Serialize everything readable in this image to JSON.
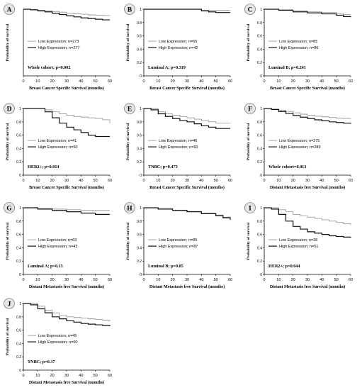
{
  "figure": {
    "panels": [
      {
        "letter": "A",
        "legend": [
          "Low Expression; n=273",
          "High Expression; n=277"
        ],
        "annotation": "Whole cohort; p=0.002",
        "ylabel": "Probability of survival",
        "xlabel": "Breast Cancer Specific Survival (months)"
      },
      {
        "letter": "B",
        "legend": [
          "Low Expression; n=65",
          "High Expression; n=42"
        ],
        "annotation": "Luminal A; p=0.319",
        "ylabel": "Probability of survival",
        "xlabel": "Breast Cancer Specific Survival (months)"
      },
      {
        "letter": "C",
        "legend": [
          "Low Expression; n=85",
          "High Expression; n=86"
        ],
        "annotation": "Luminal B; p=0.241",
        "ylabel": "Probability of survival",
        "xlabel": "Breast Cancer Specific Survival (months)"
      },
      {
        "letter": "D",
        "legend": [
          "Low Expression; n=41",
          "High Expression; n=50"
        ],
        "annotation": "HER2+; p=0.014",
        "ylabel": "Probability of survival",
        "xlabel": "Breast Cancer Specific Survival (months)"
      },
      {
        "letter": "E",
        "legend": [
          "Low Expression; n=46",
          "High Expression; n=60"
        ],
        "annotation": "TNBC; p=0.473",
        "ylabel": "Probability of survival",
        "xlabel": "Breast Cancer Specific Survival (months)"
      },
      {
        "letter": "F",
        "legend": [
          "Low Expression; n=275",
          "High Expression; n=283"
        ],
        "annotation": "Whole cohort=0.013",
        "ylabel": "Probability of survival",
        "xlabel": "Distant Metastasis free Survival (months)"
      },
      {
        "letter": "G",
        "legend": [
          "Low Expression; n=69",
          "High Expression; n=43"
        ],
        "annotation": "Luminal A; p=0.15",
        "ylabel": "Probability of survival",
        "xlabel": "Distant Metastasis free Survival (months)"
      },
      {
        "letter": "H",
        "legend": [
          "Low Expression; n=85",
          "High Expression; n=87"
        ],
        "annotation": "Luminal B; p=0.85",
        "ylabel": "Probability of survival",
        "xlabel": "Distant Metastasis free Survival (months)"
      },
      {
        "letter": "I",
        "legend": [
          "Low Expression; n=38",
          "High Expression; n=51"
        ],
        "annotation": "HER2+; p=0.044",
        "ylabel": "Probability of survival",
        "xlabel": "Distant Metastasis free Survival (months)"
      },
      {
        "letter": "J",
        "legend": [
          "Low Expression; n=45",
          "High Expression; n=60"
        ],
        "annotation": "TNBC; p=0.37",
        "ylabel": "Probability of survival",
        "xlabel": "Distant Metastasis free Survival (months)"
      }
    ]
  },
  "colors": {
    "low": "#9a9a9a",
    "high": "#111111",
    "badge": "#e4e4e4"
  },
  "chart_data": [
    {
      "type": "line",
      "panel": "A",
      "ylim": [
        0,
        1
      ],
      "xlim": [
        0,
        60
      ],
      "x_ticks": [
        0,
        10,
        20,
        30,
        40,
        50,
        60
      ],
      "y_ticks": [],
      "series": [
        {
          "name": "Low Expression; n=273",
          "x": [
            0,
            5,
            10,
            15,
            20,
            25,
            30,
            35,
            40,
            45,
            50,
            55,
            60
          ],
          "y": [
            1.0,
            0.995,
            0.985,
            0.975,
            0.965,
            0.955,
            0.94,
            0.93,
            0.925,
            0.915,
            0.91,
            0.905,
            0.9
          ]
        },
        {
          "name": "High Expression; n=277",
          "x": [
            0,
            5,
            10,
            15,
            20,
            25,
            30,
            35,
            40,
            45,
            50,
            55,
            60
          ],
          "y": [
            1.0,
            0.99,
            0.975,
            0.96,
            0.94,
            0.92,
            0.9,
            0.885,
            0.87,
            0.86,
            0.85,
            0.84,
            0.84
          ]
        }
      ]
    },
    {
      "type": "line",
      "panel": "B",
      "ylim": [
        0,
        1
      ],
      "xlim": [
        0,
        60
      ],
      "x_ticks": [
        0,
        10,
        20,
        30,
        40,
        50,
        60
      ],
      "y_ticks": [
        0,
        0.2,
        0.4,
        0.6,
        0.8,
        1.0
      ],
      "series": [
        {
          "name": "Low Expression; n=65",
          "x": [
            0,
            10,
            20,
            30,
            40,
            45,
            50,
            60
          ],
          "y": [
            1.0,
            1.0,
            1.0,
            1.0,
            0.985,
            0.985,
            0.985,
            0.985
          ]
        },
        {
          "name": "High Expression; n=42",
          "x": [
            0,
            10,
            20,
            30,
            40,
            45,
            50,
            60
          ],
          "y": [
            1.0,
            1.0,
            1.0,
            1.0,
            0.975,
            0.96,
            0.95,
            0.95
          ]
        }
      ]
    },
    {
      "type": "line",
      "panel": "C",
      "ylim": [
        0,
        1
      ],
      "xlim": [
        0,
        60
      ],
      "x_ticks": [
        0,
        10,
        20,
        30,
        40,
        50,
        60
      ],
      "y_ticks": [
        0,
        0.2,
        0.4,
        0.6,
        0.8,
        1.0
      ],
      "series": [
        {
          "name": "Low Expression; n=85",
          "x": [
            0,
            10,
            20,
            30,
            40,
            50,
            55,
            60
          ],
          "y": [
            1.0,
            0.99,
            0.975,
            0.96,
            0.95,
            0.935,
            0.92,
            0.92
          ]
        },
        {
          "name": "High Expression; n=86",
          "x": [
            0,
            10,
            20,
            30,
            40,
            50,
            55,
            60
          ],
          "y": [
            1.0,
            0.985,
            0.96,
            0.945,
            0.93,
            0.91,
            0.89,
            0.88
          ]
        }
      ]
    },
    {
      "type": "line",
      "panel": "D",
      "ylim": [
        0,
        1
      ],
      "xlim": [
        0,
        60
      ],
      "x_ticks": [
        0,
        10,
        20,
        30,
        40,
        50,
        60
      ],
      "y_ticks": [
        0,
        0.2,
        0.4,
        0.6,
        0.8,
        1.0
      ],
      "series": [
        {
          "name": "Low Expression; n=41",
          "x": [
            0,
            10,
            15,
            20,
            25,
            30,
            35,
            40,
            45,
            50,
            55,
            60
          ],
          "y": [
            1.0,
            1.0,
            0.98,
            0.95,
            0.92,
            0.9,
            0.88,
            0.87,
            0.86,
            0.85,
            0.83,
            0.78
          ]
        },
        {
          "name": "High Expression; n=50",
          "x": [
            0,
            10,
            15,
            20,
            25,
            30,
            35,
            40,
            45,
            50,
            55,
            60
          ],
          "y": [
            1.0,
            1.0,
            0.95,
            0.86,
            0.78,
            0.72,
            0.68,
            0.64,
            0.6,
            0.58,
            0.58,
            0.58
          ]
        }
      ]
    },
    {
      "type": "line",
      "panel": "E",
      "ylim": [
        0,
        1
      ],
      "xlim": [
        0,
        60
      ],
      "x_ticks": [
        0,
        10,
        20,
        30,
        40,
        50,
        60
      ],
      "y_ticks": [
        0,
        0.2,
        0.4,
        0.6,
        0.8,
        1.0
      ],
      "series": [
        {
          "name": "Low Expression; n=46",
          "x": [
            0,
            5,
            10,
            15,
            20,
            25,
            30,
            35,
            40,
            45,
            50,
            55,
            60
          ],
          "y": [
            1.0,
            1.0,
            0.95,
            0.92,
            0.9,
            0.88,
            0.86,
            0.84,
            0.82,
            0.8,
            0.78,
            0.78,
            0.78
          ]
        },
        {
          "name": "High Expression; n=60",
          "x": [
            0,
            5,
            10,
            15,
            20,
            25,
            30,
            35,
            40,
            45,
            50,
            55,
            60
          ],
          "y": [
            1.0,
            0.98,
            0.92,
            0.88,
            0.85,
            0.82,
            0.8,
            0.77,
            0.74,
            0.72,
            0.7,
            0.7,
            0.7
          ]
        }
      ]
    },
    {
      "type": "line",
      "panel": "F",
      "ylim": [
        0,
        1
      ],
      "xlim": [
        0,
        60
      ],
      "x_ticks": [
        0,
        10,
        20,
        30,
        40,
        50,
        60
      ],
      "y_ticks": [
        0,
        0.2,
        0.4,
        0.6,
        0.8,
        1.0
      ],
      "series": [
        {
          "name": "Low Expression; n=275",
          "x": [
            0,
            5,
            10,
            15,
            20,
            25,
            30,
            35,
            40,
            45,
            50,
            55,
            60
          ],
          "y": [
            1.0,
            0.99,
            0.975,
            0.955,
            0.935,
            0.915,
            0.9,
            0.885,
            0.875,
            0.865,
            0.855,
            0.85,
            0.845
          ]
        },
        {
          "name": "High Expression; n=283",
          "x": [
            0,
            5,
            10,
            15,
            20,
            25,
            30,
            35,
            40,
            45,
            50,
            55,
            60
          ],
          "y": [
            1.0,
            0.985,
            0.955,
            0.925,
            0.895,
            0.87,
            0.85,
            0.83,
            0.815,
            0.8,
            0.79,
            0.78,
            0.77
          ]
        }
      ]
    },
    {
      "type": "line",
      "panel": "G",
      "ylim": [
        0,
        1
      ],
      "xlim": [
        0,
        60
      ],
      "x_ticks": [
        0,
        10,
        20,
        30,
        40,
        50,
        60
      ],
      "y_ticks": [
        0,
        0.2,
        0.4,
        0.6,
        0.8,
        1.0
      ],
      "series": [
        {
          "name": "Low Expression; n=69",
          "x": [
            0,
            10,
            20,
            30,
            40,
            50,
            60
          ],
          "y": [
            1.0,
            0.99,
            0.98,
            0.97,
            0.96,
            0.96,
            0.96
          ]
        },
        {
          "name": "High Expression; n=43",
          "x": [
            0,
            10,
            20,
            30,
            40,
            50,
            60
          ],
          "y": [
            1.0,
            0.98,
            0.96,
            0.94,
            0.92,
            0.9,
            0.9
          ]
        }
      ]
    },
    {
      "type": "line",
      "panel": "H",
      "ylim": [
        0,
        1
      ],
      "xlim": [
        0,
        60
      ],
      "x_ticks": [
        0,
        10,
        20,
        30,
        40,
        50,
        60
      ],
      "y_ticks": [
        0,
        0.2,
        0.4,
        0.6,
        0.8,
        1.0
      ],
      "series": [
        {
          "name": "Low Expression; n=85",
          "x": [
            0,
            10,
            20,
            30,
            40,
            50,
            55,
            60
          ],
          "y": [
            1.0,
            0.985,
            0.965,
            0.945,
            0.92,
            0.89,
            0.86,
            0.84
          ]
        },
        {
          "name": "High Expression; n=87",
          "x": [
            0,
            10,
            20,
            30,
            40,
            50,
            55,
            60
          ],
          "y": [
            1.0,
            0.98,
            0.96,
            0.94,
            0.91,
            0.88,
            0.85,
            0.82
          ]
        }
      ]
    },
    {
      "type": "line",
      "panel": "I",
      "ylim": [
        0,
        1
      ],
      "xlim": [
        0,
        60
      ],
      "x_ticks": [
        0,
        10,
        20,
        30,
        40,
        50,
        60
      ],
      "y_ticks": [
        0,
        0.2,
        0.4,
        0.6,
        0.8,
        1.0
      ],
      "series": [
        {
          "name": "Low Expression; n=38",
          "x": [
            0,
            5,
            10,
            15,
            20,
            25,
            30,
            35,
            40,
            45,
            50,
            55,
            60
          ],
          "y": [
            1.0,
            1.0,
            0.97,
            0.94,
            0.9,
            0.88,
            0.86,
            0.84,
            0.82,
            0.8,
            0.78,
            0.76,
            0.74
          ]
        },
        {
          "name": "High Expression; n=51",
          "x": [
            0,
            5,
            10,
            15,
            20,
            25,
            30,
            35,
            40,
            45,
            50,
            55,
            60
          ],
          "y": [
            1.0,
            0.98,
            0.9,
            0.8,
            0.72,
            0.68,
            0.64,
            0.62,
            0.6,
            0.58,
            0.57,
            0.56,
            0.55
          ]
        }
      ]
    },
    {
      "type": "line",
      "panel": "J",
      "ylim": [
        0,
        1
      ],
      "xlim": [
        0,
        60
      ],
      "x_ticks": [
        0,
        10,
        20,
        30,
        40,
        50,
        60
      ],
      "y_ticks": [
        0,
        0.2,
        0.4,
        0.6,
        0.8,
        1.0
      ],
      "series": [
        {
          "name": "Low Expression; n=45",
          "x": [
            0,
            5,
            10,
            15,
            20,
            25,
            30,
            35,
            40,
            45,
            50,
            55,
            60
          ],
          "y": [
            1.0,
            1.0,
            0.96,
            0.9,
            0.86,
            0.82,
            0.8,
            0.79,
            0.78,
            0.77,
            0.76,
            0.75,
            0.74
          ]
        },
        {
          "name": "High Expression; n=60",
          "x": [
            0,
            5,
            10,
            15,
            20,
            25,
            30,
            35,
            40,
            45,
            50,
            55,
            60
          ],
          "y": [
            1.0,
            0.98,
            0.92,
            0.86,
            0.8,
            0.77,
            0.74,
            0.72,
            0.7,
            0.69,
            0.68,
            0.67,
            0.66
          ]
        }
      ]
    }
  ]
}
